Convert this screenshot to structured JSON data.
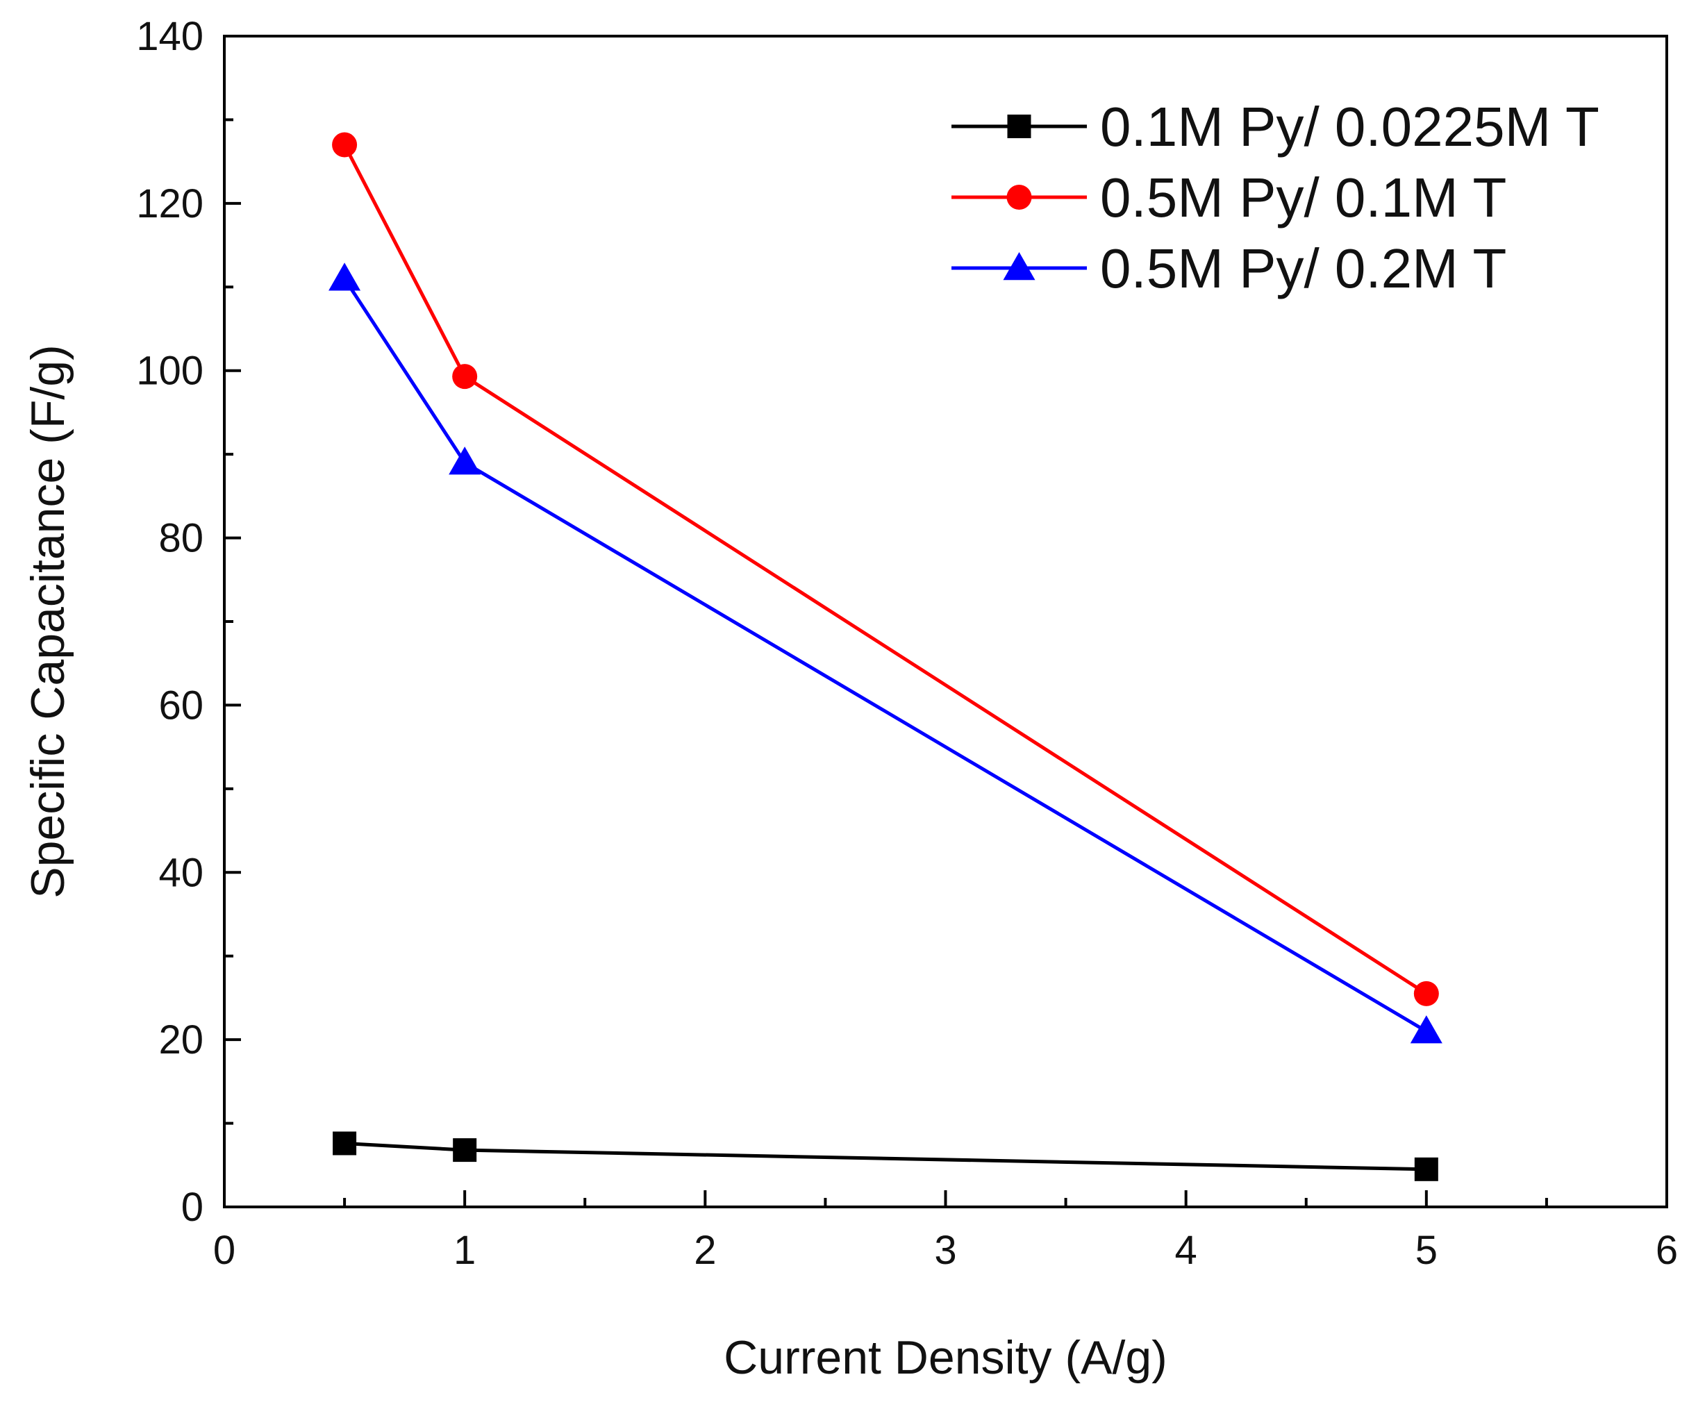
{
  "chart_data": {
    "type": "line",
    "title": "",
    "xlabel": "Current Density (A/g)",
    "ylabel": "Specific Capacitance (F/g)",
    "xlim": [
      0,
      6
    ],
    "ylim": [
      0,
      140
    ],
    "xticks": [
      0,
      1,
      2,
      3,
      4,
      5,
      6
    ],
    "yticks": [
      0,
      20,
      40,
      60,
      80,
      100,
      120,
      140
    ],
    "x_tick_labels": [
      "0",
      "1",
      "2",
      "3",
      "4",
      "5",
      "6"
    ],
    "y_tick_labels": [
      "0",
      "20",
      "40",
      "60",
      "80",
      "100",
      "120",
      "140"
    ],
    "grid": false,
    "legend_position": "top-right",
    "series": [
      {
        "name": "0.1M Py/ 0.0225M T",
        "color": "#000000",
        "marker": "square",
        "x": [
          0.5,
          1,
          5
        ],
        "values": [
          7.6,
          6.8,
          4.5
        ]
      },
      {
        "name": "0.5M Py/ 0.1M T",
        "color": "#ff0000",
        "marker": "circle",
        "x": [
          0.5,
          1,
          5
        ],
        "values": [
          127,
          99.3,
          25.5
        ]
      },
      {
        "name": "0.5M Py/ 0.2M T",
        "color": "#0000ff",
        "marker": "triangle",
        "x": [
          0.5,
          1,
          5
        ],
        "values": [
          111,
          89,
          21
        ]
      }
    ]
  }
}
